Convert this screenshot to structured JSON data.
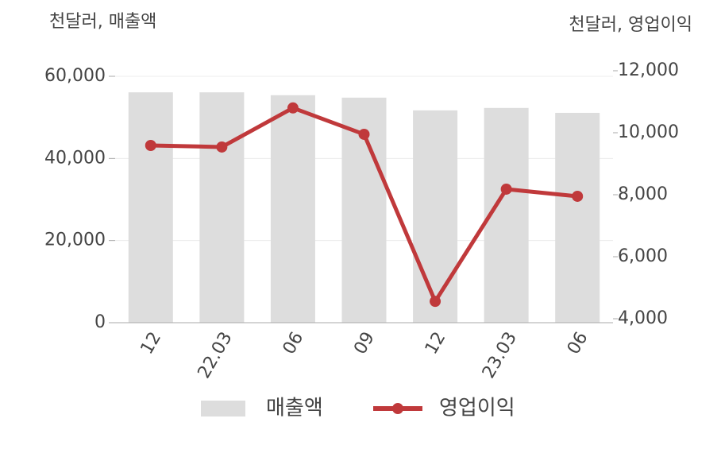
{
  "chart_data": {
    "type": "bar-line",
    "y_title": "천달러, 매출액",
    "y2_title": "천달러, 영업이익",
    "categories": [
      "12",
      "22.03",
      "06",
      "09",
      "12",
      "23.03",
      "06"
    ],
    "series": [
      {
        "name": "매출액",
        "type": "bar",
        "color": "#dddddd",
        "values": [
          56100,
          56100,
          55400,
          54800,
          51700,
          52300,
          51100
        ]
      },
      {
        "name": "영업이익",
        "type": "line",
        "axis": "y2",
        "color": "#c0393b",
        "values": [
          9590,
          9540,
          10800,
          9950,
          4560,
          8180,
          7950
        ]
      }
    ],
    "ylim": [
      0,
      60000
    ],
    "yticks": [
      0,
      {
        "value": 20000,
        "label": "20,000"
      },
      {
        "value": 40000,
        "label": "40,000"
      },
      {
        "value": 60000,
        "label": "60,000"
      }
    ],
    "y2lim": [
      4000,
      12000
    ],
    "y2ticks": [
      {
        "value": 4000,
        "label": "4,000"
      },
      {
        "value": 6000,
        "label": "6,000"
      },
      {
        "value": 8000,
        "label": "8,000"
      },
      {
        "value": 10000,
        "label": "10,000"
      },
      {
        "value": 12000,
        "label": "12,000"
      }
    ],
    "grid": true,
    "legend": "bottom"
  }
}
